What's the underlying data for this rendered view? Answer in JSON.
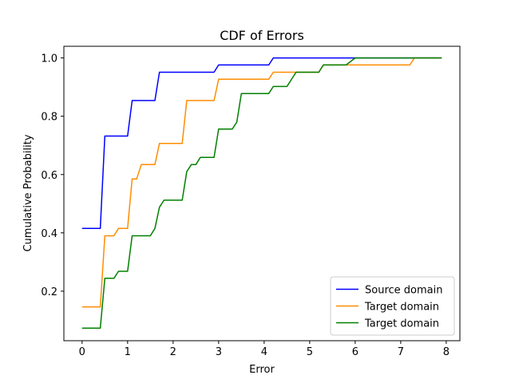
{
  "chart_data": {
    "type": "line",
    "title": "CDF of Errors",
    "xlabel": "Error",
    "ylabel": "Cumulative Probability",
    "xlim": [
      -0.4,
      8.3
    ],
    "ylim": [
      0.03,
      1.04
    ],
    "xticks": [
      0,
      1,
      2,
      3,
      4,
      5,
      6,
      7,
      8
    ],
    "yticks": [
      0.2,
      0.4,
      0.6,
      0.8,
      1.0
    ],
    "ytick_labels": [
      "0.2",
      "0.4",
      "0.6",
      "0.8",
      "1.0"
    ],
    "grid": false,
    "legend_position": "lower-right",
    "series": [
      {
        "name": "Source domain",
        "color": "#0000ff",
        "x": [
          0,
          0.4,
          0.5,
          1.0,
          1.1,
          1.6,
          1.7,
          2.0,
          2.9,
          3.0,
          4.1,
          4.2,
          4.7,
          5.2,
          6.0,
          7.9
        ],
        "y": [
          0.415,
          0.415,
          0.732,
          0.732,
          0.854,
          0.854,
          0.951,
          0.951,
          0.951,
          0.976,
          0.976,
          1.0,
          1.0,
          1.0,
          1.0,
          1.0
        ]
      },
      {
        "name": "Target domain",
        "color": "#ff8c00",
        "x": [
          0,
          0.4,
          0.5,
          0.7,
          0.8,
          1.0,
          1.1,
          1.2,
          1.3,
          1.6,
          1.7,
          2.0,
          2.2,
          2.3,
          2.8,
          2.9,
          3.0,
          3.5,
          4.1,
          4.2,
          4.6,
          4.7,
          5.2,
          5.3,
          5.5,
          6.0,
          7.2,
          7.3,
          7.9
        ],
        "y": [
          0.146,
          0.146,
          0.39,
          0.39,
          0.415,
          0.415,
          0.585,
          0.585,
          0.634,
          0.634,
          0.707,
          0.707,
          0.707,
          0.854,
          0.854,
          0.854,
          0.927,
          0.927,
          0.927,
          0.951,
          0.951,
          0.951,
          0.951,
          0.976,
          0.976,
          0.976,
          0.976,
          1.0,
          1.0
        ]
      },
      {
        "name": "Target domain",
        "color": "#008000",
        "x": [
          0,
          0.4,
          0.5,
          0.7,
          0.8,
          1.0,
          1.1,
          1.5,
          1.6,
          1.7,
          1.8,
          2.0,
          2.2,
          2.3,
          2.4,
          2.5,
          2.6,
          2.9,
          3.0,
          3.3,
          3.4,
          3.5,
          4.1,
          4.2,
          4.5,
          4.7,
          5.2,
          5.3,
          5.8,
          6.0,
          7.9
        ],
        "y": [
          0.073,
          0.073,
          0.244,
          0.244,
          0.268,
          0.268,
          0.39,
          0.39,
          0.415,
          0.488,
          0.512,
          0.512,
          0.512,
          0.61,
          0.634,
          0.634,
          0.659,
          0.659,
          0.756,
          0.756,
          0.78,
          0.878,
          0.878,
          0.902,
          0.902,
          0.951,
          0.951,
          0.976,
          0.976,
          1.0,
          1.0
        ]
      }
    ]
  }
}
